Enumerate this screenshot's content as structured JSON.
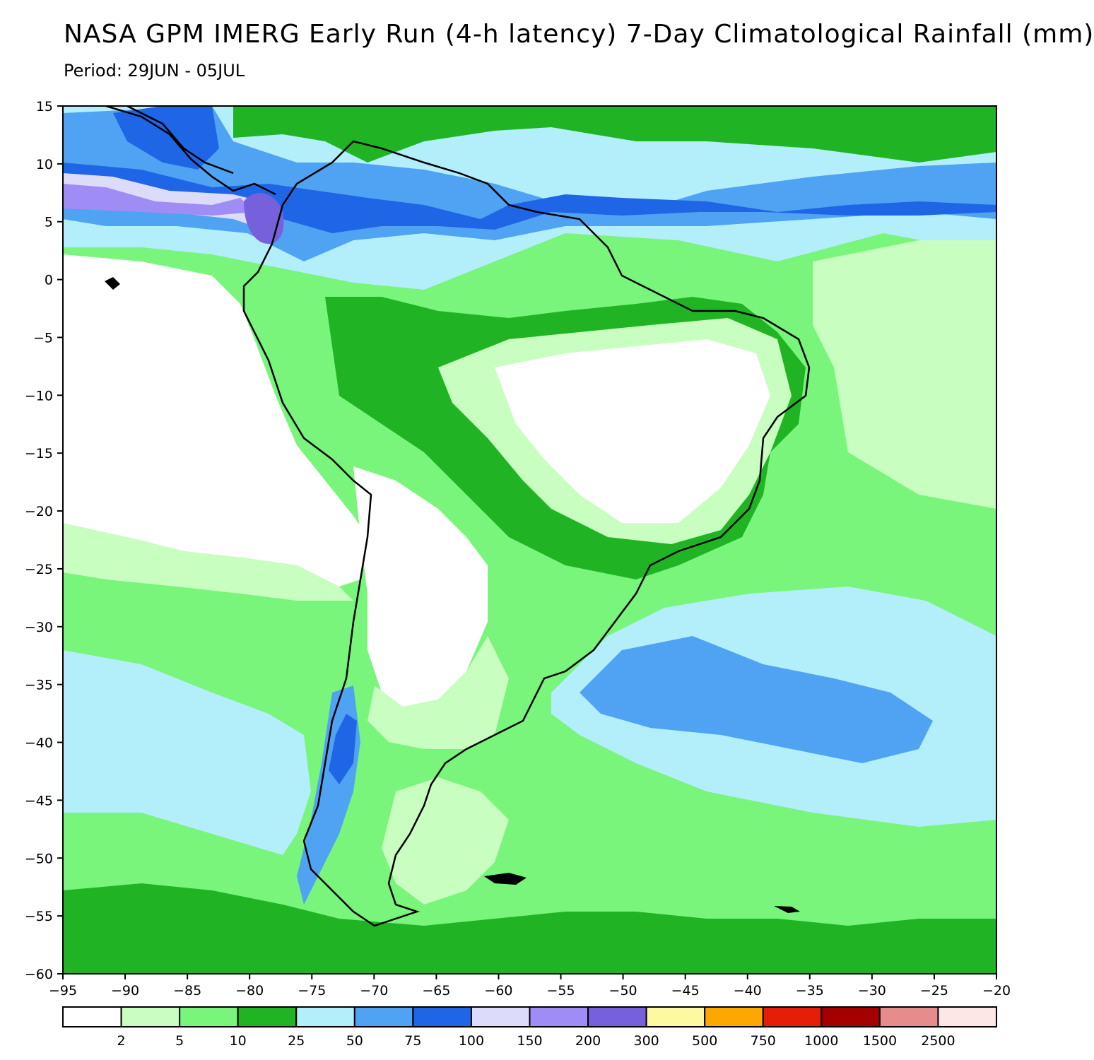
{
  "title": "NASA GPM IMERG Early Run (4-h latency) 7-Day Climatological Rainfall (mm)",
  "subtitle": "Period: 29JUN - 05JUL",
  "map": {
    "lat_ticks": [
      "15",
      "10",
      "5",
      "0",
      "-5",
      "-10",
      "-15",
      "-20",
      "-25",
      "-30",
      "-35",
      "-40",
      "-45",
      "-50",
      "-55",
      "-60"
    ],
    "lon_ticks": [
      "-95",
      "-90",
      "-85",
      "-80",
      "-75",
      "-70",
      "-65",
      "-60",
      "-55",
      "-50",
      "-45",
      "-40",
      "-35",
      "-30",
      "-25",
      "-20"
    ],
    "lon_range": [
      -95,
      -20
    ],
    "lat_range": [
      -60,
      15
    ]
  },
  "colorbar": {
    "colors": [
      "#ffffff",
      "#c8fec0",
      "#78f57a",
      "#20b425",
      "#b3eefb",
      "#4fa3f2",
      "#1f66e6",
      "#dcdcfa",
      "#a08cf5",
      "#7660dc",
      "#fdf9a3",
      "#fda800",
      "#e61e08",
      "#a50000",
      "#e68c8c",
      "#fce6e6"
    ],
    "labels": [
      "2",
      "5",
      "10",
      "25",
      "50",
      "75",
      "100",
      "150",
      "200",
      "300",
      "500",
      "750",
      "1000",
      "1500",
      "2500"
    ]
  }
}
